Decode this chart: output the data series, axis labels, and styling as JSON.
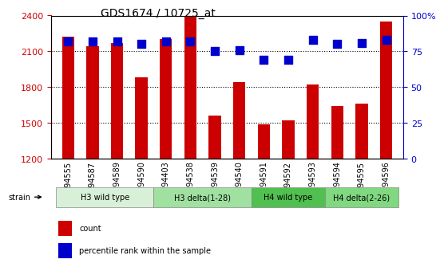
{
  "title": "GDS1674 / 10725_at",
  "samples": [
    "GSM94555",
    "GSM94587",
    "GSM94589",
    "GSM94590",
    "GSM94403",
    "GSM94538",
    "GSM94539",
    "GSM94540",
    "GSM94591",
    "GSM94592",
    "GSM94593",
    "GSM94594",
    "GSM94595",
    "GSM94596"
  ],
  "counts": [
    2220,
    2140,
    2170,
    1880,
    2200,
    2390,
    1560,
    1840,
    1490,
    1520,
    1820,
    1640,
    1660,
    2350
  ],
  "percentiles": [
    82,
    82,
    82,
    80,
    82,
    82,
    75,
    76,
    69,
    69,
    83,
    80,
    81,
    83
  ],
  "bar_color": "#cc0000",
  "dot_color": "#0000cc",
  "ylim_left": [
    1200,
    2400
  ],
  "ylim_right": [
    0,
    100
  ],
  "yticks_left": [
    1200,
    1500,
    1800,
    2100,
    2400
  ],
  "yticks_right": [
    0,
    25,
    50,
    75,
    100
  ],
  "groups": [
    {
      "label": "H3 wild type",
      "start": 0,
      "end": 4,
      "color": "#d8f0d8"
    },
    {
      "label": "H3 delta(1-28)",
      "start": 4,
      "end": 8,
      "color": "#a0e0a0"
    },
    {
      "label": "H4 wild type",
      "start": 8,
      "end": 11,
      "color": "#50c050"
    },
    {
      "label": "H4 delta(2-26)",
      "start": 11,
      "end": 14,
      "color": "#80d880"
    }
  ],
  "legend_count_color": "#cc0000",
  "legend_dot_color": "#0000cc",
  "strain_label": "strain",
  "grid_color": "#000000",
  "axis_left_color": "#cc0000",
  "axis_right_color": "#0000cc",
  "bar_bottom": 1200,
  "dot_size": 60
}
